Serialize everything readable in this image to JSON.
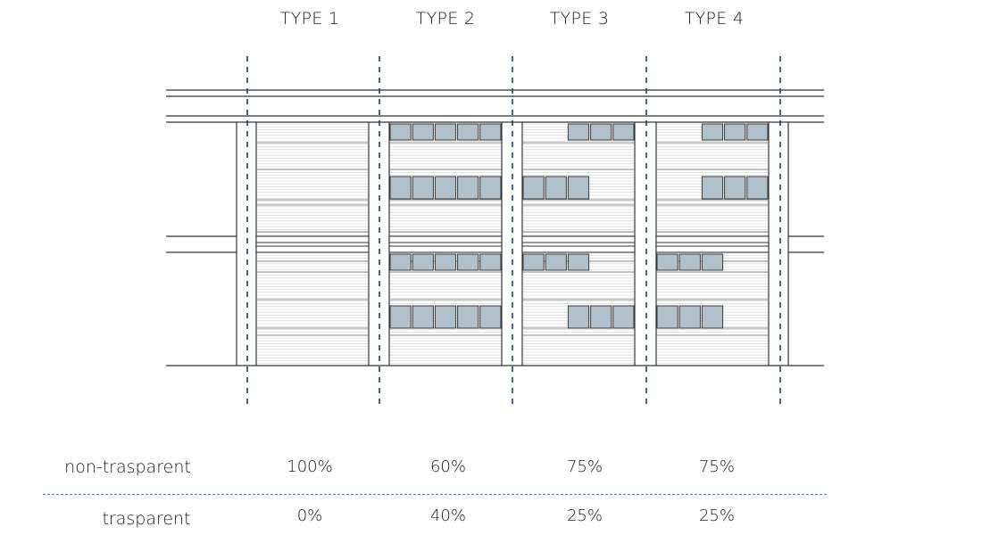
{
  "types": [
    {
      "title": "TYPE 1",
      "non_transparent": "100%",
      "transparent": "0%",
      "windows": [
        [
          0,
          0,
          0,
          0,
          0
        ],
        [
          0,
          0,
          0,
          0,
          0
        ],
        [
          0,
          0,
          0,
          0,
          0
        ],
        [
          0,
          0,
          0,
          0,
          0
        ]
      ]
    },
    {
      "title": "TYPE 2",
      "non_transparent": "60%",
      "transparent": "40%",
      "windows": [
        [
          1,
          1,
          1,
          1,
          1
        ],
        [
          1,
          1,
          1,
          1,
          1
        ],
        [
          1,
          1,
          1,
          1,
          1
        ],
        [
          1,
          1,
          1,
          1,
          1
        ]
      ]
    },
    {
      "title": "TYPE 3",
      "non_transparent": "75%",
      "transparent": "25%",
      "windows": [
        [
          0,
          0,
          1,
          1,
          1
        ],
        [
          1,
          1,
          1,
          0,
          0
        ],
        [
          1,
          1,
          1,
          0,
          0
        ],
        [
          0,
          0,
          1,
          1,
          1
        ]
      ]
    },
    {
      "title": "TYPE 4",
      "non_transparent": "75%",
      "transparent": "25%",
      "windows": [
        [
          0,
          0,
          1,
          1,
          1
        ],
        [
          0,
          0,
          1,
          1,
          1
        ],
        [
          1,
          1,
          1,
          0,
          0
        ],
        [
          1,
          1,
          1,
          0,
          0
        ]
      ]
    }
  ],
  "rows": {
    "non_transparent_label": "non-trasparent",
    "transparent_label": "trasparent"
  },
  "colors": {
    "glass": "#b1c1cb",
    "axis": "#1f3f66",
    "line": "#333333",
    "separator": "#4f7faa"
  }
}
